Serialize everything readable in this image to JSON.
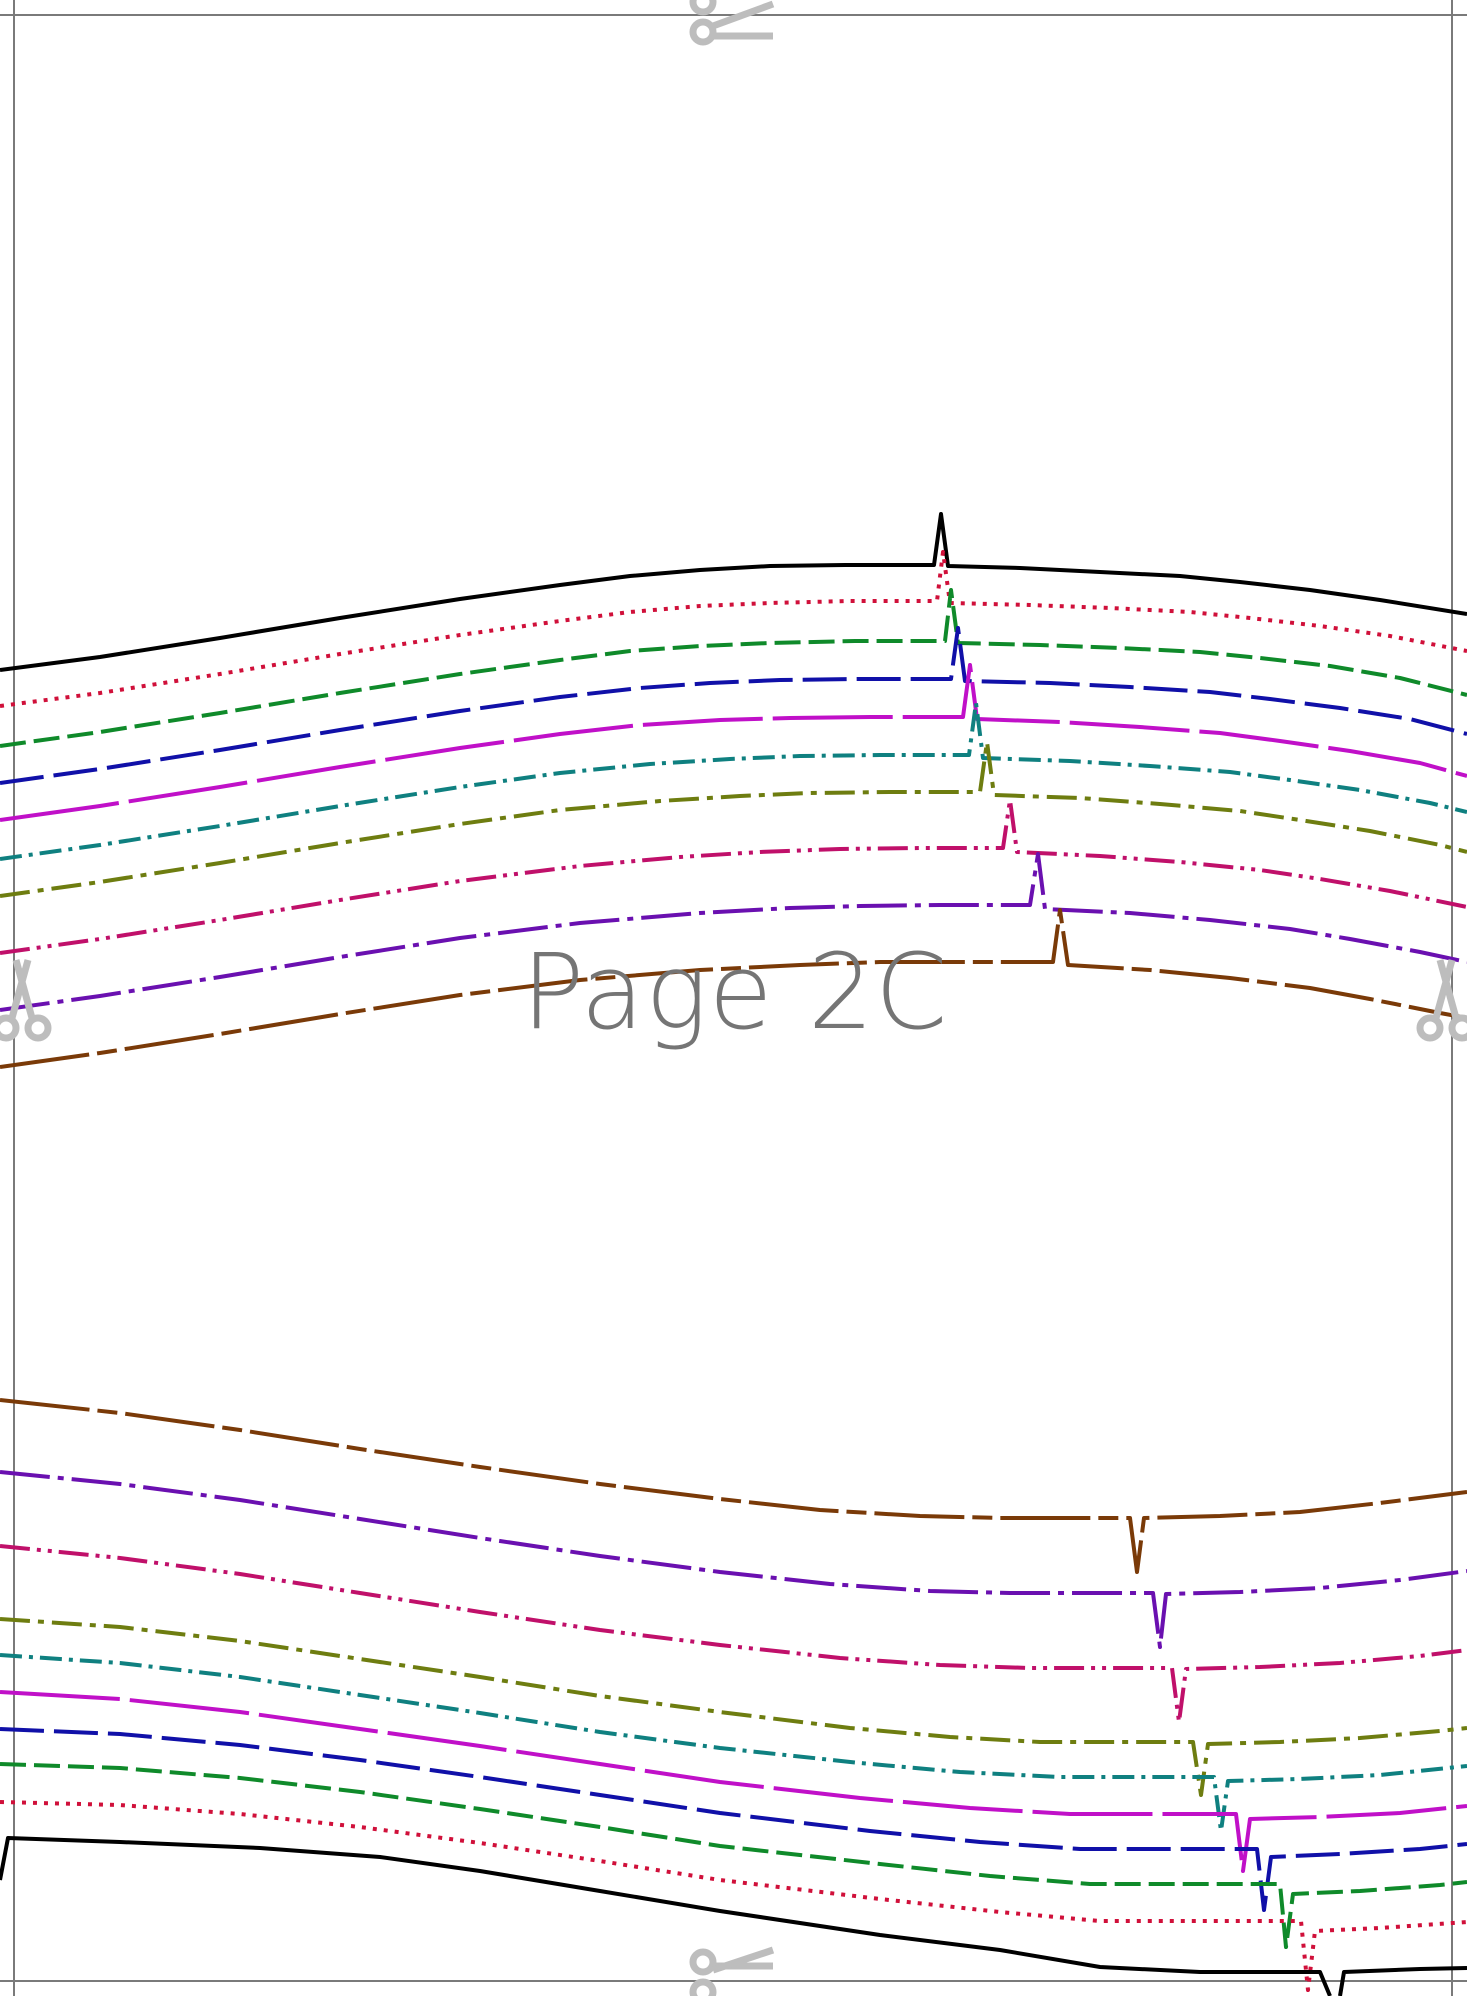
{
  "page_label": "Page 2C",
  "colors": {
    "border": "#7a7a7a",
    "label": "#757575",
    "scissors": "#bdbdbd",
    "black": "#000000",
    "red": "#d0103a",
    "green": "#0f8a2a",
    "blue": "#1010a8",
    "magenta": "#c010c8",
    "teal": "#0f8080",
    "olive": "#6e7d10",
    "crimson": "#c0106a",
    "purple": "#6a10b0",
    "brown": "#7a3a08"
  },
  "icons": [
    "scissors-icon-top",
    "scissors-icon-left",
    "scissors-icon-right",
    "scissors-icon-bottom"
  ]
}
